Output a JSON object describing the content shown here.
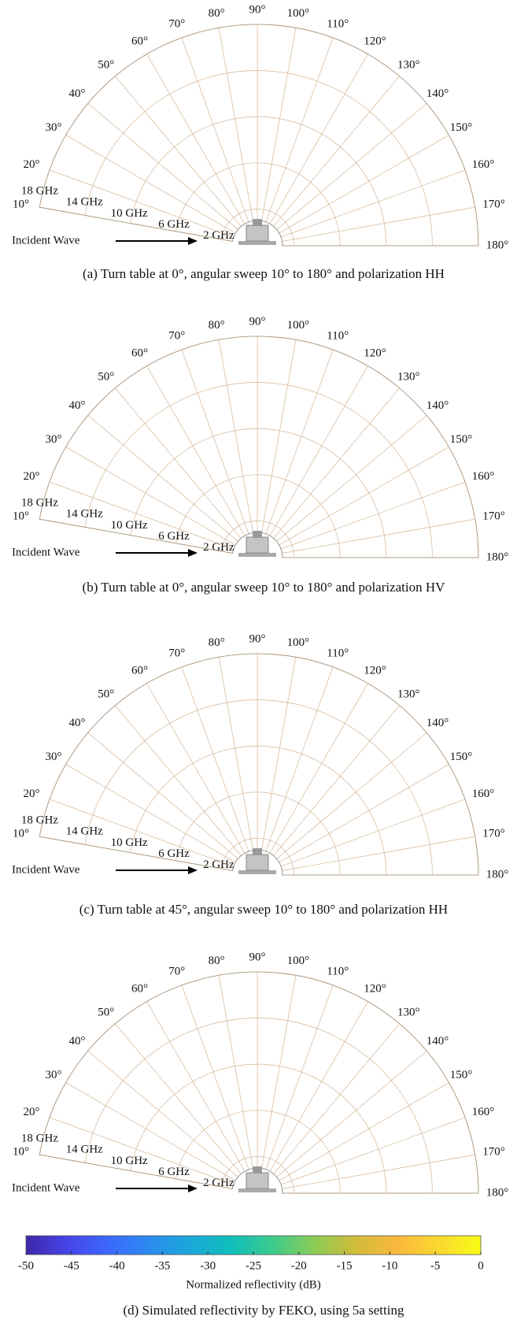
{
  "panels": [
    {
      "caption": "(a) Turn table at 0°, angular sweep 10° to 180° and polarization HH",
      "incident_label": "Incident Wave",
      "angle_ticks": [
        {
          "value": 10,
          "label": "10°"
        },
        {
          "value": 20,
          "label": "20°"
        },
        {
          "value": 30,
          "label": "30°"
        },
        {
          "value": 40,
          "label": "40°"
        },
        {
          "value": 50,
          "label": "50°"
        },
        {
          "value": 60,
          "label": "60°"
        },
        {
          "value": 70,
          "label": "70°"
        },
        {
          "value": 80,
          "label": "80°"
        },
        {
          "value": 90,
          "label": "90°"
        },
        {
          "value": 100,
          "label": "100°"
        },
        {
          "value": 110,
          "label": "110°"
        },
        {
          "value": 120,
          "label": "120°"
        },
        {
          "value": 130,
          "label": "130°"
        },
        {
          "value": 140,
          "label": "140°"
        },
        {
          "value": 150,
          "label": "150°"
        },
        {
          "value": 160,
          "label": "160°"
        },
        {
          "value": 170,
          "label": "170°"
        },
        {
          "value": 180,
          "label": "180°"
        }
      ],
      "freq_ticks": [
        {
          "value": 2,
          "label": "2 GHz"
        },
        {
          "value": 6,
          "label": "6 GHz"
        },
        {
          "value": 10,
          "label": "10 GHz"
        },
        {
          "value": 14,
          "label": "14 GHz"
        },
        {
          "value": 18,
          "label": "18 GHz"
        }
      ]
    },
    {
      "caption": "(b) Turn table at 0°, angular sweep 10° to 180° and polarization HV",
      "incident_label": "Incident Wave",
      "angle_ticks": [
        {
          "value": 10,
          "label": "10°"
        },
        {
          "value": 20,
          "label": "20°"
        },
        {
          "value": 30,
          "label": "30°"
        },
        {
          "value": 40,
          "label": "40°"
        },
        {
          "value": 50,
          "label": "50°"
        },
        {
          "value": 60,
          "label": "60°"
        },
        {
          "value": 70,
          "label": "70°"
        },
        {
          "value": 80,
          "label": "80°"
        },
        {
          "value": 90,
          "label": "90°"
        },
        {
          "value": 100,
          "label": "100°"
        },
        {
          "value": 110,
          "label": "110°"
        },
        {
          "value": 120,
          "label": "120°"
        },
        {
          "value": 130,
          "label": "130°"
        },
        {
          "value": 140,
          "label": "140°"
        },
        {
          "value": 150,
          "label": "150°"
        },
        {
          "value": 160,
          "label": "160°"
        },
        {
          "value": 170,
          "label": "170°"
        },
        {
          "value": 180,
          "label": "180°"
        }
      ],
      "freq_ticks": [
        {
          "value": 2,
          "label": "2 GHz"
        },
        {
          "value": 6,
          "label": "6 GHz"
        },
        {
          "value": 10,
          "label": "10 GHz"
        },
        {
          "value": 14,
          "label": "14 GHz"
        },
        {
          "value": 18,
          "label": "18 GHz"
        }
      ]
    },
    {
      "caption": "(c) Turn table at 45°, angular sweep 10° to 180° and polarization HH",
      "incident_label": "Incident Wave",
      "angle_ticks": [
        {
          "value": 10,
          "label": "10°"
        },
        {
          "value": 20,
          "label": "20°"
        },
        {
          "value": 30,
          "label": "30°"
        },
        {
          "value": 40,
          "label": "40°"
        },
        {
          "value": 50,
          "label": "50°"
        },
        {
          "value": 60,
          "label": "60°"
        },
        {
          "value": 70,
          "label": "70°"
        },
        {
          "value": 80,
          "label": "80°"
        },
        {
          "value": 90,
          "label": "90°"
        },
        {
          "value": 100,
          "label": "100°"
        },
        {
          "value": 110,
          "label": "110°"
        },
        {
          "value": 120,
          "label": "120°"
        },
        {
          "value": 130,
          "label": "130°"
        },
        {
          "value": 140,
          "label": "140°"
        },
        {
          "value": 150,
          "label": "150°"
        },
        {
          "value": 160,
          "label": "160°"
        },
        {
          "value": 170,
          "label": "170°"
        },
        {
          "value": 180,
          "label": "180°"
        }
      ],
      "freq_ticks": [
        {
          "value": 2,
          "label": "2 GHz"
        },
        {
          "value": 6,
          "label": "6 GHz"
        },
        {
          "value": 10,
          "label": "10 GHz"
        },
        {
          "value": 14,
          "label": "14 GHz"
        },
        {
          "value": 18,
          "label": "18 GHz"
        }
      ]
    },
    {
      "caption": "(d) Simulated reflectivity by FEKO, using 5a setting",
      "incident_label": "Incident Wave",
      "angle_ticks": [
        {
          "value": 10,
          "label": "10°"
        },
        {
          "value": 20,
          "label": "20°"
        },
        {
          "value": 30,
          "label": "30°"
        },
        {
          "value": 40,
          "label": "40°"
        },
        {
          "value": 50,
          "label": "50°"
        },
        {
          "value": 60,
          "label": "60°"
        },
        {
          "value": 70,
          "label": "70°"
        },
        {
          "value": 80,
          "label": "80°"
        },
        {
          "value": 90,
          "label": "90°"
        },
        {
          "value": 100,
          "label": "100°"
        },
        {
          "value": 110,
          "label": "110°"
        },
        {
          "value": 120,
          "label": "120°"
        },
        {
          "value": 130,
          "label": "130°"
        },
        {
          "value": 140,
          "label": "140°"
        },
        {
          "value": 150,
          "label": "150°"
        },
        {
          "value": 160,
          "label": "160°"
        },
        {
          "value": 170,
          "label": "170°"
        },
        {
          "value": 180,
          "label": "180°"
        }
      ],
      "freq_ticks": [
        {
          "value": 2,
          "label": "2 GHz"
        },
        {
          "value": 6,
          "label": "6 GHz"
        },
        {
          "value": 10,
          "label": "10 GHz"
        },
        {
          "value": 14,
          "label": "14 GHz"
        },
        {
          "value": 18,
          "label": "18 GHz"
        }
      ]
    }
  ],
  "colorbar": {
    "label": "Normalized reflectivity (dB)",
    "lim": [
      -50,
      0
    ],
    "ticks": [
      -50,
      -45,
      -40,
      -35,
      -30,
      -25,
      -20,
      -15,
      -10,
      -5,
      0
    ],
    "colormap": [
      "#3e26a8",
      "#4744e8",
      "#3b68fd",
      "#2c8cef",
      "#19a9d8",
      "#10bfb9",
      "#3fcb8b",
      "#8ecb55",
      "#d3bb3a",
      "#fbb83e",
      "#f9d92f",
      "#f9fb15"
    ]
  }
}
